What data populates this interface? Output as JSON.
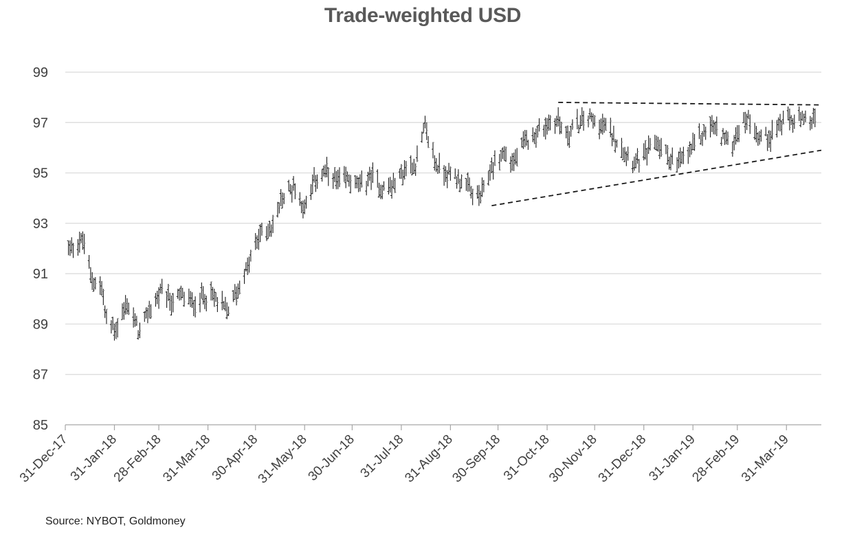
{
  "chart_data": {
    "type": "ohlc",
    "title": "Trade-weighted USD",
    "source": "Source: NYBOT, Goldmoney",
    "xlabel": "",
    "ylabel": "",
    "ylim": [
      85,
      99
    ],
    "yticks": [
      85,
      87,
      89,
      91,
      93,
      95,
      97,
      99
    ],
    "xlim": [
      "2017-12-31",
      "2019-04-22"
    ],
    "xtick_dates": [
      "2017-12-31",
      "2018-01-31",
      "2018-02-28",
      "2018-03-31",
      "2018-04-30",
      "2018-05-31",
      "2018-06-30",
      "2018-07-31",
      "2018-08-31",
      "2018-09-30",
      "2018-10-31",
      "2018-11-30",
      "2018-12-31",
      "2019-01-31",
      "2019-02-28",
      "2019-03-31"
    ],
    "xtick_labels": [
      "31-Dec-17",
      "31-Jan-18",
      "28-Feb-18",
      "31-Mar-18",
      "30-Apr-18",
      "31-May-18",
      "30-Jun-18",
      "31-Jul-18",
      "31-Aug-18",
      "30-Sep-18",
      "31-Oct-18",
      "30-Nov-18",
      "31-Dec-18",
      "31-Jan-19",
      "28-Feb-19",
      "31-Mar-19"
    ],
    "grid": true,
    "legend": "none",
    "series": [
      {
        "x": [
          "2018-01-02",
          "2018-01-09",
          "2018-01-12",
          "2018-01-16",
          "2018-01-23",
          "2018-01-26",
          "2018-02-01",
          "2018-02-08",
          "2018-02-16",
          "2018-02-23",
          "2018-03-01",
          "2018-03-08",
          "2018-03-15",
          "2018-03-22",
          "2018-03-29",
          "2018-04-05",
          "2018-04-12",
          "2018-04-19",
          "2018-04-26",
          "2018-05-03",
          "2018-05-10",
          "2018-05-17",
          "2018-05-24",
          "2018-05-31",
          "2018-06-07",
          "2018-06-14",
          "2018-06-21",
          "2018-06-28",
          "2018-07-05",
          "2018-07-12",
          "2018-07-19",
          "2018-07-26",
          "2018-08-02",
          "2018-08-09",
          "2018-08-15",
          "2018-08-22",
          "2018-08-29",
          "2018-09-05",
          "2018-09-12",
          "2018-09-19",
          "2018-09-26",
          "2018-10-03",
          "2018-10-10",
          "2018-10-17",
          "2018-10-24",
          "2018-10-31",
          "2018-11-07",
          "2018-11-12",
          "2018-11-19",
          "2018-11-26",
          "2018-12-03",
          "2018-12-10",
          "2018-12-17",
          "2018-12-24",
          "2018-12-31",
          "2019-01-07",
          "2019-01-14",
          "2019-01-21",
          "2019-01-28",
          "2019-02-04",
          "2019-02-11",
          "2019-02-18",
          "2019-02-25",
          "2019-03-01",
          "2019-03-07",
          "2019-03-14",
          "2019-03-21",
          "2019-03-28",
          "2019-04-04",
          "2019-04-11",
          "2019-04-18"
        ],
        "values": [
          92.0,
          92.3,
          92.2,
          90.9,
          90.4,
          89.1,
          88.8,
          89.8,
          88.6,
          89.7,
          90.2,
          89.9,
          90.1,
          89.8,
          90.2,
          90.0,
          89.5,
          90.4,
          91.4,
          92.6,
          92.8,
          94.0,
          94.5,
          93.6,
          94.8,
          95.0,
          94.6,
          94.8,
          94.4,
          94.9,
          94.4,
          94.5,
          95.1,
          95.4,
          96.8,
          95.3,
          95.0,
          94.8,
          94.3,
          94.0,
          95.2,
          95.8,
          95.4,
          96.2,
          96.6,
          96.9,
          97.1,
          96.5,
          96.9,
          97.2,
          97.0,
          96.6,
          96.1,
          95.5,
          95.6,
          96.3,
          95.8,
          95.3,
          95.8,
          96.4,
          96.9,
          96.5,
          96.1,
          96.8,
          97.2,
          96.4,
          96.5,
          97.0,
          97.1,
          97.0,
          97.1
        ]
      }
    ],
    "annotations": [
      {
        "type": "trendline",
        "style": "dashed",
        "from": [
          "2018-09-26",
          93.7
        ],
        "to": [
          "2019-04-22",
          95.9
        ]
      },
      {
        "type": "trendline",
        "style": "dashed",
        "from": [
          "2018-11-07",
          97.8
        ],
        "to": [
          "2019-04-22",
          97.7
        ]
      }
    ]
  }
}
